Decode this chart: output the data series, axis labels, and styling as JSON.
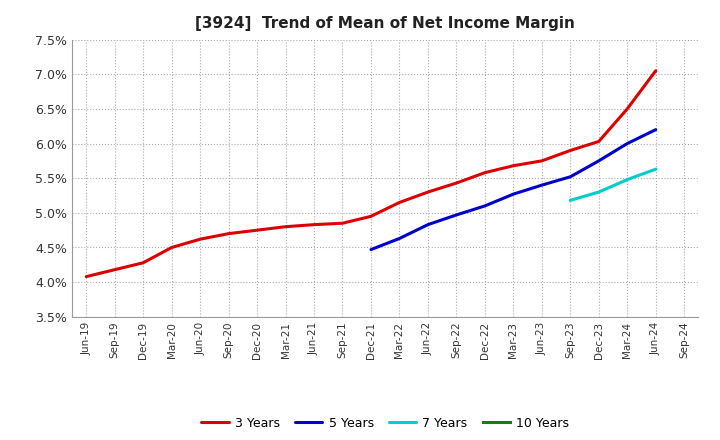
{
  "title": "[3924]  Trend of Mean of Net Income Margin",
  "background_color": "#ffffff",
  "plot_bg_color": "#ffffff",
  "grid_color": "#aaaaaa",
  "ylim": [
    0.035,
    0.075
  ],
  "yticks": [
    0.035,
    0.04,
    0.045,
    0.05,
    0.055,
    0.06,
    0.065,
    0.07,
    0.075
  ],
  "ytick_labels": [
    "3.5%",
    "4.0%",
    "4.5%",
    "5.0%",
    "5.5%",
    "6.0%",
    "6.5%",
    "7.0%",
    "7.5%"
  ],
  "xtick_labels": [
    "Jun-19",
    "Sep-19",
    "Dec-19",
    "Mar-20",
    "Jun-20",
    "Sep-20",
    "Dec-20",
    "Mar-21",
    "Jun-21",
    "Sep-21",
    "Dec-21",
    "Mar-22",
    "Jun-22",
    "Sep-22",
    "Dec-22",
    "Mar-23",
    "Jun-23",
    "Sep-23",
    "Dec-23",
    "Mar-24",
    "Jun-24",
    "Sep-24"
  ],
  "series": {
    "3 Years": {
      "color": "#dd0000",
      "data_x": [
        1,
        2,
        3,
        4,
        5,
        6,
        7,
        8,
        9,
        10,
        11,
        12,
        13,
        14,
        15,
        16,
        17,
        18,
        19,
        20,
        21
      ],
      "data_y": [
        0.0408,
        0.0418,
        0.0428,
        0.045,
        0.0462,
        0.047,
        0.0475,
        0.048,
        0.0483,
        0.0485,
        0.0495,
        0.0515,
        0.053,
        0.0543,
        0.0558,
        0.0568,
        0.0575,
        0.059,
        0.0603,
        0.065,
        0.0705
      ]
    },
    "5 Years": {
      "color": "#0000cc",
      "data_x": [
        11,
        12,
        13,
        14,
        15,
        16,
        17,
        18,
        19,
        20,
        21
      ],
      "data_y": [
        0.0447,
        0.0463,
        0.0483,
        0.0497,
        0.051,
        0.0527,
        0.054,
        0.0552,
        0.0575,
        0.06,
        0.062
      ]
    },
    "7 Years": {
      "color": "#00cccc",
      "data_x": [
        18,
        19,
        20,
        21
      ],
      "data_y": [
        0.0518,
        0.053,
        0.0548,
        0.0563
      ]
    },
    "10 Years": {
      "color": "#008800",
      "data_x": [],
      "data_y": []
    }
  },
  "legend_order": [
    "3 Years",
    "5 Years",
    "7 Years",
    "10 Years"
  ]
}
